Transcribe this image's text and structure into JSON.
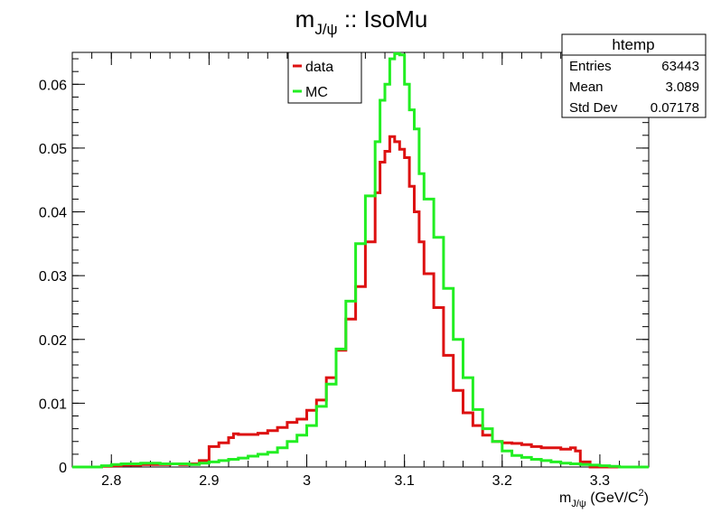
{
  "title": {
    "main": "m",
    "sub": "J/ψ",
    "rest": " :: IsoMu"
  },
  "xlabel": {
    "main": "m",
    "sub": "J/ψ",
    "rest": " (GeV/C",
    "sup": "2",
    "end": ")"
  },
  "stats": {
    "name": "htemp",
    "rows": [
      {
        "label": "Entries",
        "value": "63443"
      },
      {
        "label": "Mean",
        "value": "3.089"
      },
      {
        "label": "Std Dev",
        "value": "0.07178"
      }
    ]
  },
  "legend": [
    {
      "label": "data",
      "color": "#dd1111"
    },
    {
      "label": "MC",
      "color": "#22ee22"
    }
  ],
  "chart_data": {
    "type": "line",
    "histogram": true,
    "xlim": [
      2.76,
      3.35
    ],
    "ylim": [
      0,
      0.065
    ],
    "x_bin_width": 0.005,
    "x_ticks": [
      "2.8",
      "2.9",
      "3",
      "3.1",
      "3.2",
      "3.3"
    ],
    "y_ticks": [
      "0",
      "0.01",
      "0.02",
      "0.03",
      "0.04",
      "0.05",
      "0.06"
    ],
    "series": [
      {
        "name": "data",
        "color": "#dd1111",
        "points": [
          [
            2.76,
            0.0
          ],
          [
            2.77,
            0.0
          ],
          [
            2.78,
            0.0
          ],
          [
            2.79,
            0.0001
          ],
          [
            2.8,
            0.0002
          ],
          [
            2.81,
            0.0003
          ],
          [
            2.82,
            0.0003
          ],
          [
            2.83,
            0.0004
          ],
          [
            2.84,
            0.0004
          ],
          [
            2.85,
            0.0004
          ],
          [
            2.86,
            0.0005
          ],
          [
            2.87,
            0.0004
          ],
          [
            2.88,
            0.0005
          ],
          [
            2.89,
            0.001
          ],
          [
            2.9,
            0.0032
          ],
          [
            2.91,
            0.0038
          ],
          [
            2.92,
            0.0046
          ],
          [
            2.925,
            0.0052
          ],
          [
            2.93,
            0.0051
          ],
          [
            2.94,
            0.0051
          ],
          [
            2.95,
            0.0053
          ],
          [
            2.96,
            0.0057
          ],
          [
            2.97,
            0.0062
          ],
          [
            2.98,
            0.007
          ],
          [
            2.99,
            0.0075
          ],
          [
            3.0,
            0.0089
          ],
          [
            3.01,
            0.0105
          ],
          [
            3.02,
            0.014
          ],
          [
            3.03,
            0.0183
          ],
          [
            3.04,
            0.0232
          ],
          [
            3.05,
            0.0283
          ],
          [
            3.06,
            0.0353
          ],
          [
            3.07,
            0.043
          ],
          [
            3.075,
            0.0478
          ],
          [
            3.08,
            0.0495
          ],
          [
            3.085,
            0.0518
          ],
          [
            3.09,
            0.051
          ],
          [
            3.095,
            0.0498
          ],
          [
            3.1,
            0.0485
          ],
          [
            3.105,
            0.044
          ],
          [
            3.11,
            0.04
          ],
          [
            3.115,
            0.0353
          ],
          [
            3.12,
            0.0303
          ],
          [
            3.13,
            0.025
          ],
          [
            3.14,
            0.0175
          ],
          [
            3.15,
            0.012
          ],
          [
            3.16,
            0.0085
          ],
          [
            3.17,
            0.0065
          ],
          [
            3.18,
            0.005
          ],
          [
            3.19,
            0.004
          ],
          [
            3.2,
            0.0038
          ],
          [
            3.21,
            0.0037
          ],
          [
            3.22,
            0.0035
          ],
          [
            3.23,
            0.0032
          ],
          [
            3.24,
            0.003
          ],
          [
            3.25,
            0.003
          ],
          [
            3.26,
            0.0028
          ],
          [
            3.27,
            0.003
          ],
          [
            3.275,
            0.0025
          ],
          [
            3.28,
            0.0008
          ],
          [
            3.29,
            0.0
          ],
          [
            3.35,
            0.0
          ]
        ]
      },
      {
        "name": "MC",
        "color": "#22ee22",
        "points": [
          [
            2.76,
            0.0
          ],
          [
            2.77,
            0.0
          ],
          [
            2.78,
            0.0
          ],
          [
            2.79,
            0.0002
          ],
          [
            2.8,
            0.0004
          ],
          [
            2.81,
            0.0005
          ],
          [
            2.82,
            0.0005
          ],
          [
            2.83,
            0.0006
          ],
          [
            2.84,
            0.0006
          ],
          [
            2.85,
            0.0005
          ],
          [
            2.86,
            0.0005
          ],
          [
            2.87,
            0.0005
          ],
          [
            2.88,
            0.0004
          ],
          [
            2.89,
            0.0006
          ],
          [
            2.9,
            0.0008
          ],
          [
            2.91,
            0.001
          ],
          [
            2.92,
            0.0012
          ],
          [
            2.93,
            0.0014
          ],
          [
            2.94,
            0.0017
          ],
          [
            2.95,
            0.002
          ],
          [
            2.96,
            0.0023
          ],
          [
            2.97,
            0.003
          ],
          [
            2.98,
            0.004
          ],
          [
            2.99,
            0.005
          ],
          [
            3.0,
            0.0065
          ],
          [
            3.01,
            0.0095
          ],
          [
            3.02,
            0.013
          ],
          [
            3.03,
            0.0185
          ],
          [
            3.04,
            0.026
          ],
          [
            3.05,
            0.035
          ],
          [
            3.06,
            0.0425
          ],
          [
            3.07,
            0.051
          ],
          [
            3.075,
            0.0575
          ],
          [
            3.08,
            0.06
          ],
          [
            3.085,
            0.064
          ],
          [
            3.09,
            0.0648
          ],
          [
            3.095,
            0.0646
          ],
          [
            3.1,
            0.06
          ],
          [
            3.105,
            0.056
          ],
          [
            3.11,
            0.053
          ],
          [
            3.115,
            0.046
          ],
          [
            3.12,
            0.042
          ],
          [
            3.13,
            0.036
          ],
          [
            3.14,
            0.028
          ],
          [
            3.15,
            0.02
          ],
          [
            3.16,
            0.014
          ],
          [
            3.17,
            0.009
          ],
          [
            3.18,
            0.006
          ],
          [
            3.19,
            0.004
          ],
          [
            3.2,
            0.0025
          ],
          [
            3.21,
            0.0018
          ],
          [
            3.22,
            0.0015
          ],
          [
            3.23,
            0.0012
          ],
          [
            3.24,
            0.001
          ],
          [
            3.25,
            0.0008
          ],
          [
            3.26,
            0.0006
          ],
          [
            3.27,
            0.0005
          ],
          [
            3.28,
            0.0004
          ],
          [
            3.29,
            0.0003
          ],
          [
            3.3,
            0.0002
          ],
          [
            3.31,
            0.0001
          ],
          [
            3.32,
            0.0
          ],
          [
            3.35,
            0.0
          ]
        ]
      }
    ]
  }
}
